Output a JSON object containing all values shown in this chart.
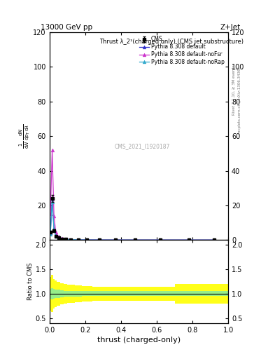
{
  "title_top": "13000 GeV pp",
  "title_right": "Z+Jet",
  "annotation": "Thrust λ_2¹(charged only) (CMS jet substructure)",
  "watermark": "CMS_2021_I1920187",
  "right_label_top": "Rivet 3.1.10, ≥ 3M events",
  "right_label_bottom": "mcplots.cern.ch [arXiv:1306.3436]",
  "ylabel_ratio": "Ratio to CMS",
  "xlabel": "thrust (charged-only)",
  "ylim_main": [
    0,
    120
  ],
  "ylim_ratio": [
    0.4,
    2.1
  ],
  "yticks_main": [
    0,
    20,
    40,
    60,
    80,
    100,
    120
  ],
  "yticks_ratio": [
    0.5,
    1.0,
    1.5,
    2.0
  ],
  "xlim": [
    0,
    1
  ],
  "thrust_x": [
    0.005,
    0.015,
    0.025,
    0.035,
    0.05,
    0.07,
    0.09,
    0.12,
    0.16,
    0.21,
    0.28,
    0.37,
    0.48,
    0.62,
    0.78,
    0.92
  ],
  "cms_y": [
    4.5,
    24.0,
    5.5,
    2.2,
    1.2,
    0.7,
    0.4,
    0.25,
    0.15,
    0.08,
    0.04,
    0.02,
    0.02,
    0.01,
    0.005,
    0.003
  ],
  "cms_yerr": [
    0.5,
    2.0,
    0.5,
    0.3,
    0.15,
    0.1,
    0.06,
    0.04,
    0.03,
    0.02,
    0.01,
    0.005,
    0.005,
    0.003,
    0.002,
    0.001
  ],
  "pythia_default_x": [
    0.005,
    0.015,
    0.025,
    0.035,
    0.05,
    0.07,
    0.09,
    0.12,
    0.16,
    0.21,
    0.28,
    0.37,
    0.48,
    0.62,
    0.78,
    0.92
  ],
  "pythia_default_y": [
    4.0,
    24.5,
    6.5,
    2.5,
    1.3,
    0.75,
    0.45,
    0.28,
    0.17,
    0.09,
    0.05,
    0.025,
    0.012,
    0.006,
    0.003,
    0.001
  ],
  "pythia_default_color": "#3333cc",
  "pythia_nofsr_x": [
    0.005,
    0.015,
    0.025,
    0.035,
    0.05,
    0.07,
    0.09,
    0.12,
    0.16,
    0.21,
    0.28,
    0.37,
    0.48,
    0.62,
    0.78,
    0.92
  ],
  "pythia_nofsr_y": [
    15.0,
    52.0,
    14.0,
    4.5,
    2.0,
    1.0,
    0.55,
    0.3,
    0.18,
    0.09,
    0.05,
    0.025,
    0.012,
    0.006,
    0.003,
    0.001
  ],
  "pythia_nofsr_color": "#cc33cc",
  "pythia_norap_x": [
    0.005,
    0.015,
    0.025,
    0.035,
    0.05,
    0.07,
    0.09,
    0.12,
    0.16,
    0.21,
    0.28,
    0.37,
    0.48,
    0.62,
    0.78,
    0.92
  ],
  "pythia_norap_y": [
    3.5,
    22.0,
    6.0,
    2.3,
    1.25,
    0.7,
    0.42,
    0.26,
    0.16,
    0.085,
    0.045,
    0.022,
    0.011,
    0.005,
    0.003,
    0.001
  ],
  "pythia_norap_color": "#33aacc",
  "ratio_x_edges": [
    0.0,
    0.01,
    0.02,
    0.03,
    0.04,
    0.06,
    0.08,
    0.1,
    0.14,
    0.18,
    0.24,
    0.32,
    0.42,
    0.54,
    0.7,
    0.86,
    1.0
  ],
  "green_lo_vals": [
    0.9,
    0.88,
    0.9,
    0.91,
    0.92,
    0.93,
    0.94,
    0.94,
    0.94,
    0.95,
    0.95,
    0.95,
    0.95,
    0.95,
    0.95,
    0.95
  ],
  "green_hi_vals": [
    1.1,
    1.12,
    1.1,
    1.09,
    1.08,
    1.07,
    1.06,
    1.06,
    1.06,
    1.05,
    1.05,
    1.05,
    1.05,
    1.05,
    1.05,
    1.05
  ],
  "yellow_lo_vals": [
    0.65,
    0.62,
    0.7,
    0.73,
    0.76,
    0.78,
    0.8,
    0.82,
    0.83,
    0.84,
    0.85,
    0.85,
    0.85,
    0.85,
    0.8,
    0.8
  ],
  "yellow_hi_vals": [
    1.35,
    1.38,
    1.3,
    1.27,
    1.24,
    1.22,
    1.2,
    1.18,
    1.17,
    1.16,
    1.15,
    1.15,
    1.15,
    1.15,
    1.2,
    1.2
  ]
}
